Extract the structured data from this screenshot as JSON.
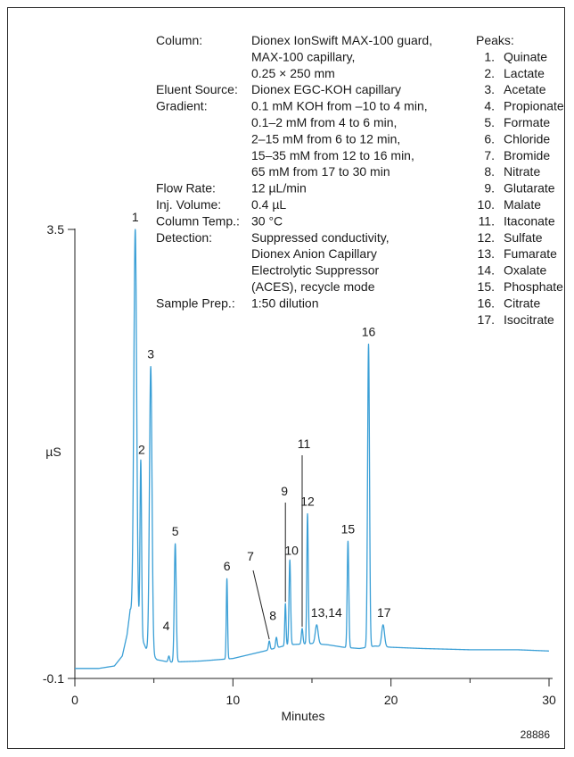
{
  "chart_data": {
    "type": "line",
    "xlabel": "Minutes",
    "ylabel": "µS",
    "xlim": [
      0,
      30
    ],
    "ylim": [
      -0.1,
      3.5
    ],
    "x_ticks": [
      "0",
      "10",
      "20",
      "30"
    ],
    "y_ticks": [
      "3.5",
      "-0.1"
    ],
    "figure_id": "28886",
    "series_color": "#3a9fd6",
    "conditions": [
      {
        "key": "Column:",
        "lines": [
          "Dionex IonSwift MAX-100 guard,",
          "MAX-100 capillary,",
          "0.25 × 250 mm"
        ]
      },
      {
        "key": "Eluent Source:",
        "lines": [
          "Dionex EGC-KOH capillary"
        ]
      },
      {
        "key": "Gradient:",
        "lines": [
          "0.1 mM KOH from –10 to 4 min,",
          "0.1–2 mM from 4 to 6 min,",
          "2–15 mM from 6 to 12 min,",
          "15–35 mM from 12 to 16 min,",
          "65 mM from 17 to 30 min"
        ]
      },
      {
        "key": "Flow Rate:",
        "lines": [
          "12 µL/min"
        ]
      },
      {
        "key": "Inj. Volume:",
        "lines": [
          "0.4 µL"
        ]
      },
      {
        "key": "Column Temp.:",
        "lines": [
          "30 °C"
        ]
      },
      {
        "key": "Detection:",
        "lines": [
          "Suppressed conductivity,",
          "Dionex Anion Capillary",
          "Electrolytic Suppressor",
          "(ACES), recycle mode"
        ]
      },
      {
        "key": "Sample Prep.:",
        "lines": [
          "1:50 dilution"
        ]
      }
    ],
    "peaks_title": "Peaks:",
    "peaks_list": [
      {
        "num": "1.",
        "name": "Quinate"
      },
      {
        "num": "2.",
        "name": "Lactate"
      },
      {
        "num": "3.",
        "name": "Acetate"
      },
      {
        "num": "4.",
        "name": "Propionate"
      },
      {
        "num": "5.",
        "name": "Formate"
      },
      {
        "num": "6.",
        "name": "Chloride"
      },
      {
        "num": "7.",
        "name": "Bromide"
      },
      {
        "num": "8.",
        "name": "Nitrate"
      },
      {
        "num": "9.",
        "name": "Glutarate"
      },
      {
        "num": "10.",
        "name": "Malate"
      },
      {
        "num": "11.",
        "name": "Itaconate"
      },
      {
        "num": "12.",
        "name": "Sulfate"
      },
      {
        "num": "13.",
        "name": "Fumarate"
      },
      {
        "num": "14.",
        "name": "Oxalate"
      },
      {
        "num": "15.",
        "name": "Phosphate"
      },
      {
        "num": "16.",
        "name": "Citrate"
      },
      {
        "num": "17.",
        "name": "Isocitrate"
      }
    ],
    "baseline": [
      [
        0,
        -0.02
      ],
      [
        1.5,
        -0.02
      ],
      [
        2.5,
        0.0
      ],
      [
        3.0,
        0.08
      ],
      [
        3.3,
        0.25
      ],
      [
        3.5,
        0.45
      ],
      [
        4.5,
        0.14
      ],
      [
        5.2,
        0.05
      ],
      [
        6.0,
        0.03
      ],
      [
        8,
        0.04
      ],
      [
        10,
        0.06
      ],
      [
        12,
        0.12
      ],
      [
        13.5,
        0.17
      ],
      [
        15,
        0.18
      ],
      [
        16,
        0.17
      ],
      [
        17,
        0.15
      ],
      [
        18,
        0.14
      ],
      [
        19,
        0.16
      ],
      [
        20,
        0.15
      ],
      [
        22,
        0.14
      ],
      [
        25,
        0.13
      ],
      [
        28,
        0.13
      ],
      [
        30,
        0.12
      ]
    ],
    "peaks": [
      {
        "label": "1",
        "t": 3.82,
        "h": 3.5,
        "w": 0.09
      },
      {
        "label": "2",
        "t": 4.17,
        "h": 1.65,
        "w": 0.05
      },
      {
        "label": "3",
        "t": 4.8,
        "h": 2.4,
        "w": 0.08
      },
      {
        "label": "4",
        "t": 5.95,
        "h": 0.08,
        "w": 0.05
      },
      {
        "label": "5",
        "t": 6.35,
        "h": 0.98,
        "w": 0.06
      },
      {
        "label": "6",
        "t": 9.62,
        "h": 0.7,
        "w": 0.04
      },
      {
        "label": "7",
        "t": 12.3,
        "h": 0.2,
        "w": 0.05
      },
      {
        "label": "8",
        "t": 12.75,
        "h": 0.23,
        "w": 0.05
      },
      {
        "label": "9",
        "t": 13.32,
        "h": 0.5,
        "w": 0.04
      },
      {
        "label": "10",
        "t": 13.6,
        "h": 0.85,
        "w": 0.05
      },
      {
        "label": "11",
        "t": 14.38,
        "h": 0.3,
        "w": 0.05
      },
      {
        "label": "12",
        "t": 14.72,
        "h": 1.22,
        "w": 0.045
      },
      {
        "label": "13,14",
        "t": 15.3,
        "h": 0.33,
        "w": 0.09
      },
      {
        "label": "15",
        "t": 17.28,
        "h": 1.0,
        "w": 0.05
      },
      {
        "label": "16",
        "t": 18.58,
        "h": 2.58,
        "w": 0.06
      },
      {
        "label": "17",
        "t": 19.5,
        "h": 0.33,
        "w": 0.09
      }
    ]
  }
}
